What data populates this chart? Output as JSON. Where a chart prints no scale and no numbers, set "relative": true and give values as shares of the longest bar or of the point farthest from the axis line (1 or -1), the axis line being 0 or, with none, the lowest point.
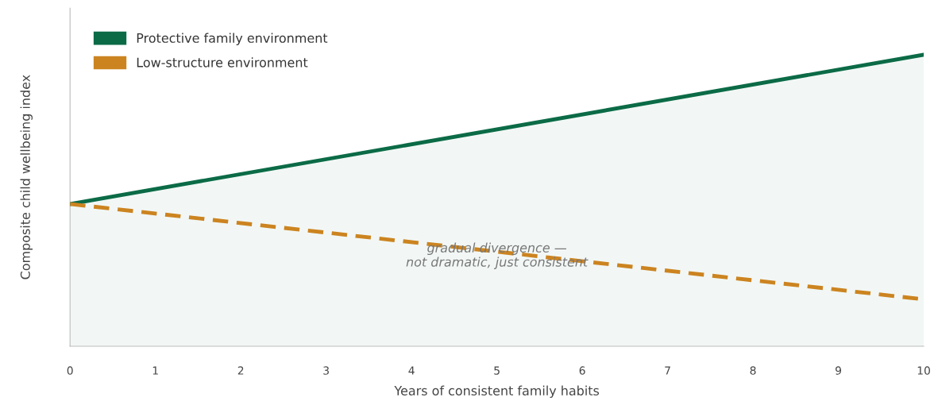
{
  "chart_data": {
    "type": "line",
    "relative": true,
    "xlabel": "Years of consistent family habits",
    "ylabel": "Composite child wellbeing index",
    "x": [
      0,
      10
    ],
    "xlim": [
      0,
      10
    ],
    "xticks": [
      0,
      1,
      2,
      3,
      4,
      5,
      6,
      7,
      8,
      9,
      10
    ],
    "legend": "top left",
    "grid": false,
    "tick_labels": "x",
    "series": [
      {
        "name": "Protective family environment",
        "type": "area",
        "color": "#0b6b47",
        "line_style": "solid",
        "values": [
          0.488,
          1.0
        ]
      },
      {
        "name": "Low-structure environment",
        "color": "#cc8420",
        "line_style": "dashed",
        "values": [
          0.488,
          0.161
        ]
      }
    ],
    "annotations": [
      {
        "text": "gradual divergence —\nnot dramatic, just consistent",
        "x": 5,
        "y": 0.31
      }
    ]
  }
}
